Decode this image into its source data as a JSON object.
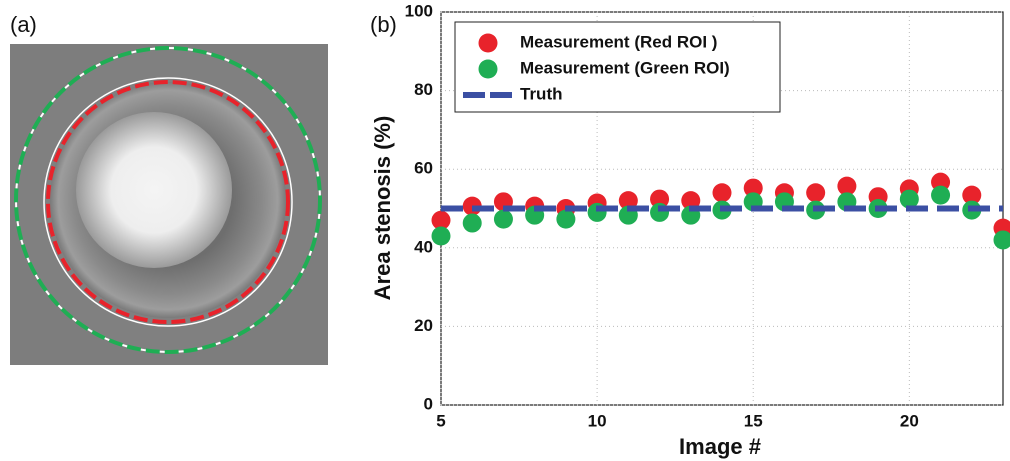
{
  "panel_labels": [
    "(a)",
    "(b)"
  ],
  "chart_data": {
    "type": "scatter",
    "xlabel": "Image #",
    "ylabel": "Area stenosis (%)",
    "x": [
      5,
      6,
      7,
      8,
      9,
      10,
      11,
      12,
      13,
      14,
      15,
      16,
      17,
      18,
      19,
      20,
      21,
      22,
      23
    ],
    "series": [
      {
        "name": "Measurement (Red ROI )",
        "type": "scatter",
        "color": "#e8232b",
        "values": [
          47,
          50.6,
          51.7,
          50.6,
          50,
          51.4,
          52,
          52.4,
          52,
          54,
          55.2,
          54,
          54,
          55.7,
          53,
          55,
          56.7,
          53.4,
          45
        ]
      },
      {
        "name": "Measurement (Green ROI)",
        "type": "scatter",
        "color": "#1fae54",
        "values": [
          43,
          46.3,
          47.3,
          48.3,
          47.3,
          49,
          48.3,
          49,
          48.3,
          49.6,
          51.7,
          51.7,
          49.6,
          51.7,
          50,
          52.4,
          53.4,
          49.6,
          42
        ]
      },
      {
        "name": "Truth",
        "type": "line",
        "color": "#3b4fa3",
        "values": [
          50,
          50,
          50,
          50,
          50,
          50,
          50,
          50,
          50,
          50,
          50,
          50,
          50,
          50,
          50,
          50,
          50,
          50,
          50
        ]
      }
    ],
    "xlim": [
      5,
      23
    ],
    "xticks": [
      5,
      10,
      15,
      20
    ],
    "ylim": [
      0,
      100
    ],
    "yticks": [
      0,
      20,
      40,
      60,
      80,
      100
    ],
    "grid": true,
    "legend": "upper left"
  }
}
